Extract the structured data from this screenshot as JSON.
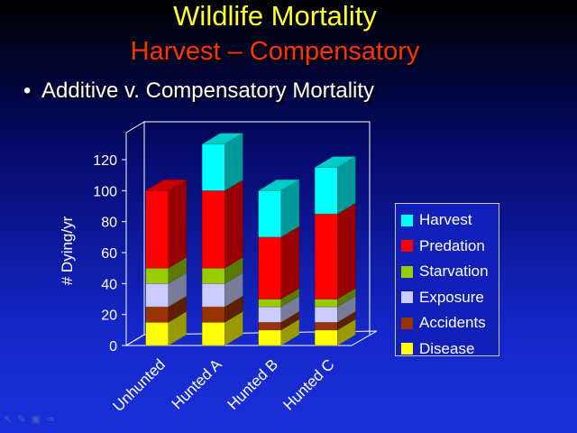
{
  "title": "Wildlife Mortality",
  "subtitle": "Harvest – Compensatory",
  "bullet": {
    "symbol": "•",
    "text": "Additive v. Compensatory Mortality"
  },
  "chart_data": {
    "type": "bar",
    "stacked": true,
    "three_d": true,
    "categories": [
      "Unhunted",
      "Hunted A",
      "Hunted B",
      "Hunted C"
    ],
    "ylabel": "# Dying/yr",
    "ylim": [
      0,
      120
    ],
    "yticks": [
      0,
      20,
      40,
      60,
      80,
      100,
      120
    ],
    "grid": false,
    "legend_position": "right",
    "series": [
      {
        "name": "Disease",
        "color": "#ffff00",
        "values": [
          15,
          15,
          10,
          10
        ]
      },
      {
        "name": "Accidents",
        "color": "#993300",
        "values": [
          10,
          10,
          5,
          5
        ]
      },
      {
        "name": "Exposure",
        "color": "#ccccff",
        "values": [
          15,
          15,
          10,
          10
        ]
      },
      {
        "name": "Starvation",
        "color": "#99cc00",
        "values": [
          10,
          10,
          5,
          5
        ]
      },
      {
        "name": "Predation",
        "color": "#ff0000",
        "values": [
          50,
          50,
          40,
          55
        ]
      },
      {
        "name": "Harvest",
        "color": "#00ffff",
        "values": [
          0,
          30,
          30,
          30
        ]
      }
    ]
  },
  "toolbar_icons": [
    "pointer-icon",
    "pen-icon",
    "screen-icon",
    "next-icon"
  ]
}
